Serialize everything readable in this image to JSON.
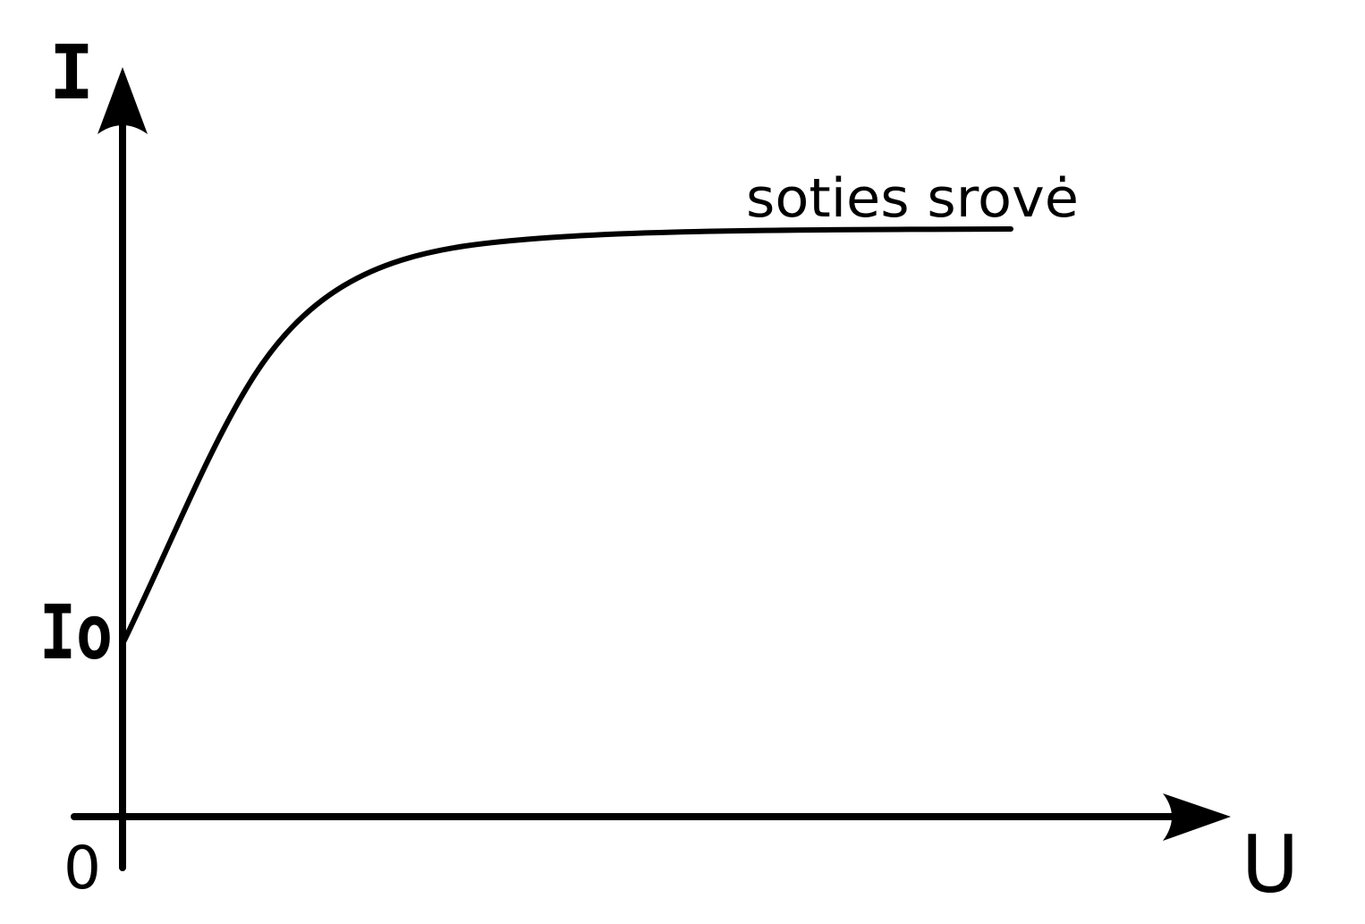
{
  "diagram": {
    "y_axis_label": "I",
    "x_axis_label": "U",
    "origin_label": "0",
    "intercept_label": "Io",
    "curve_label": "soties srovė",
    "stroke_color": "#000000",
    "background_color": "#ffffff"
  }
}
